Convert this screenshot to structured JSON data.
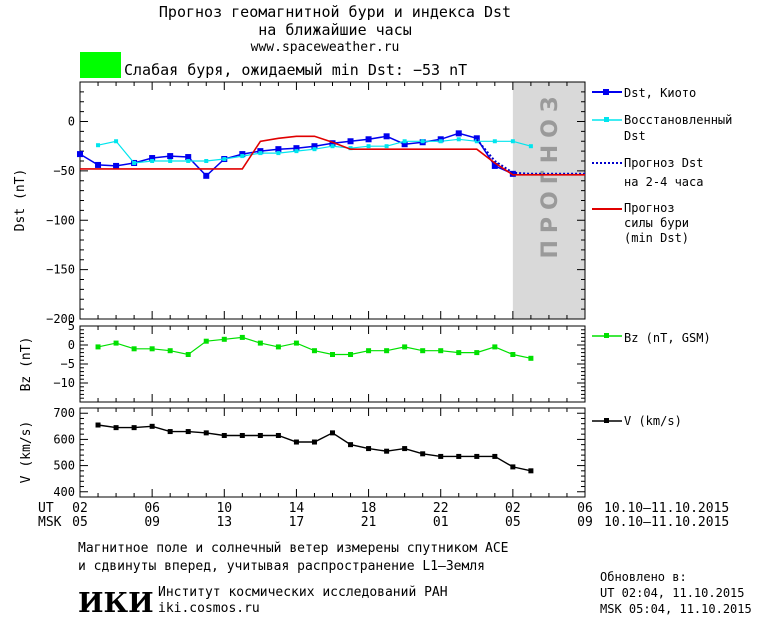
{
  "header": {
    "title_line1": "Прогноз геомагнитной бури и индекса Dst",
    "title_line2": "на ближайшие часы",
    "website": "www.spaceweather.ru",
    "status_color": "#00ff00",
    "status_text": "Слабая буря, ожидаемый min Dst: −53 nT"
  },
  "forecast_band_label": "ПРОГНОЗ",
  "legend": {
    "dst_kyoto": "Dst, Киото",
    "restored_line1": "Восстановленный",
    "restored_line2": "Dst",
    "forecast_line1": "Прогноз Dst",
    "forecast_line2": "на 2-4 часа",
    "storm_line1": "Прогноз",
    "storm_line2": "силы бури",
    "storm_line3": "(min Dst)",
    "bz": "Bz (nT, GSM)",
    "v": "V (km/s)"
  },
  "colors": {
    "dst_kyoto": "#0000ee",
    "restored": "#00e5ee",
    "forecast": "#0000cc",
    "storm": "#e00000",
    "bz": "#00e000",
    "v": "#000000",
    "forecast_band": "#d9d9d9"
  },
  "time_axis": {
    "ut_label": "UT",
    "msk_label": "MSK",
    "ut_ticks": [
      "02",
      "06",
      "10",
      "14",
      "18",
      "22",
      "02",
      "06"
    ],
    "msk_ticks": [
      "05",
      "09",
      "13",
      "17",
      "21",
      "01",
      "05",
      "09"
    ],
    "date_range_ut": "10.10–11.10.2015",
    "date_range_msk": "10.10–11.10.2015"
  },
  "footer": {
    "note_line1": "Магнитное поле и солнечный ветер измерены спутником ACE",
    "note_line2": "и сдвинуты вперед, учитывая распространение L1–Земля",
    "institute_logo": "ИКИ",
    "institute_name": "Институт космических исследований РАН",
    "institute_url": "iki.cosmos.ru",
    "updated_label": "Обновлено в:",
    "updated_ut": "UT  02:04, 11.10.2015",
    "updated_msk": "MSK 05:04, 11.10.2015"
  },
  "chart_data": [
    {
      "type": "line",
      "panel": "dst",
      "ylabel": "Dst (nT)",
      "ylim": [
        -200,
        40
      ],
      "yticks": [
        0,
        -50,
        -100,
        -150,
        -200
      ],
      "xlim": [
        0,
        28
      ],
      "forecast_region_x": [
        24,
        28
      ],
      "series": [
        {
          "name": "Dst, Киото",
          "x": [
            0,
            1,
            2,
            3,
            4,
            5,
            6,
            7,
            8,
            9,
            10,
            11,
            12,
            13,
            14,
            15,
            16,
            17,
            18,
            19,
            20,
            21,
            22,
            23,
            24
          ],
          "y": [
            -33,
            -44,
            -45,
            -42,
            -37,
            -35,
            -36,
            -55,
            -38,
            -33,
            -30,
            -28,
            -27,
            -25,
            -22,
            -20,
            -18,
            -15,
            -23,
            -21,
            -18,
            -12,
            -17,
            -45,
            -53
          ]
        },
        {
          "name": "Восстановленный Dst",
          "x": [
            1,
            2,
            3,
            4,
            5,
            6,
            7,
            8,
            9,
            10,
            11,
            12,
            13,
            14,
            15,
            16,
            17,
            18,
            19,
            20,
            21,
            22,
            23,
            24,
            25
          ],
          "y": [
            -24,
            -20,
            -42,
            -40,
            -40,
            -40,
            -40,
            -38,
            -35,
            -32,
            -32,
            -30,
            -28,
            -25,
            -27,
            -25,
            -25,
            -20,
            -20,
            -20,
            -18,
            -20,
            -20,
            -20,
            -25
          ]
        },
        {
          "name": "Прогноз Dst на 2-4 часа",
          "x": [
            22,
            23,
            24,
            25,
            26,
            27,
            28
          ],
          "y": [
            -18,
            -40,
            -52,
            -53,
            -53,
            -53,
            -53
          ]
        },
        {
          "name": "Прогноз силы бури (min Dst)",
          "x": [
            0,
            9,
            10,
            11,
            12,
            13,
            14,
            15,
            16,
            17,
            18,
            19,
            20,
            21,
            22,
            23,
            24,
            28
          ],
          "y": [
            -48,
            -48,
            -20,
            -17,
            -15,
            -15,
            -21,
            -28,
            -28,
            -28,
            -28,
            -28,
            -28,
            -28,
            -28,
            -42,
            -54,
            -54
          ]
        }
      ]
    },
    {
      "type": "line",
      "panel": "bz",
      "ylabel": "Bz (nT)",
      "ylim": [
        -15,
        5
      ],
      "yticks": [
        5,
        0,
        -5,
        -10
      ],
      "xlim": [
        0,
        28
      ],
      "series": [
        {
          "name": "Bz (nT, GSM)",
          "x": [
            1,
            2,
            3,
            4,
            5,
            6,
            7,
            8,
            9,
            10,
            11,
            12,
            13,
            14,
            15,
            16,
            17,
            18,
            19,
            20,
            21,
            22,
            23,
            24,
            25
          ],
          "y": [
            -0.5,
            0.5,
            -1.0,
            -1.0,
            -1.5,
            -2.5,
            1.0,
            1.5,
            2.0,
            0.5,
            -0.5,
            0.5,
            -1.5,
            -2.5,
            -2.5,
            -1.5,
            -1.5,
            -0.5,
            -1.5,
            -1.5,
            -2.0,
            -2.0,
            -0.5,
            -2.5,
            -3.5
          ]
        }
      ]
    },
    {
      "type": "line",
      "panel": "v",
      "ylabel": "V (km/s)",
      "ylim": [
        380,
        720
      ],
      "yticks": [
        700,
        600,
        500,
        400
      ],
      "xlim": [
        0,
        28
      ],
      "series": [
        {
          "name": "V (km/s)",
          "x": [
            1,
            2,
            3,
            4,
            5,
            6,
            7,
            8,
            9,
            10,
            11,
            12,
            13,
            14,
            15,
            16,
            17,
            18,
            19,
            20,
            21,
            22,
            23,
            24,
            25
          ],
          "y": [
            655,
            645,
            645,
            650,
            630,
            630,
            625,
            615,
            615,
            615,
            615,
            590,
            590,
            625,
            580,
            565,
            555,
            565,
            545,
            535,
            535,
            535,
            535,
            495,
            480
          ]
        }
      ]
    }
  ]
}
